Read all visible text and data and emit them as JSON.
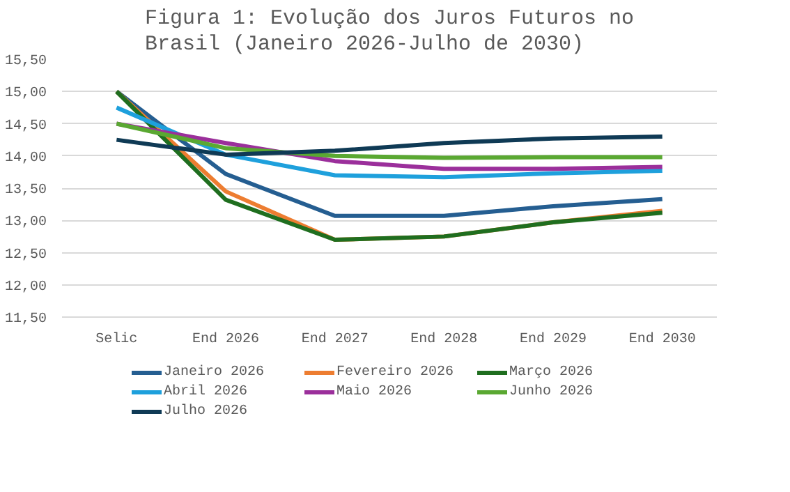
{
  "chart_data": {
    "type": "line",
    "title": "Figura 1: Evolução dos Juros Futuros no Brasil (Janeiro 2026-Julho de 2030)",
    "categories": [
      "Selic",
      "End 2026",
      "End 2027",
      "End 2028",
      "End 2029",
      "End 2030"
    ],
    "series": [
      {
        "name": "Janeiro 2026",
        "color": "#255e91",
        "values": [
          15.0,
          13.72,
          13.07,
          13.07,
          13.22,
          13.33
        ]
      },
      {
        "name": "Fevereiro 2026",
        "color": "#ed7d31",
        "values": [
          15.0,
          13.45,
          12.7,
          12.75,
          12.97,
          13.15
        ]
      },
      {
        "name": "Março 2026",
        "color": "#1f6e1f",
        "values": [
          15.0,
          13.32,
          12.7,
          12.75,
          12.97,
          13.12
        ]
      },
      {
        "name": "Abril 2026",
        "color": "#1ea0dc",
        "values": [
          14.75,
          14.02,
          13.7,
          13.67,
          13.73,
          13.77
        ]
      },
      {
        "name": "Maio 2026",
        "color": "#9b2f9b",
        "values": [
          14.5,
          14.2,
          13.92,
          13.8,
          13.8,
          13.83
        ]
      },
      {
        "name": "Junho 2026",
        "color": "#5aa832",
        "values": [
          14.5,
          14.12,
          14.0,
          13.97,
          13.98,
          13.98
        ]
      },
      {
        "name": "Julho 2026",
        "color": "#0f3a55",
        "values": [
          14.25,
          14.02,
          14.08,
          14.2,
          14.27,
          14.3
        ]
      }
    ],
    "ylim": [
      11.5,
      15.5
    ],
    "yticks": [
      {
        "value": 11.5,
        "label": "11,50"
      },
      {
        "value": 12,
        "label": "12,00"
      },
      {
        "value": 12.5,
        "label": "12,50"
      },
      {
        "value": 13,
        "label": "13,00"
      },
      {
        "value": 13.5,
        "label": "13,50"
      },
      {
        "value": 14,
        "label": "14,00"
      },
      {
        "value": 14.5,
        "label": "14,50"
      },
      {
        "value": 15,
        "label": "15,00"
      },
      {
        "value": 15.5,
        "label": "15,50"
      }
    ],
    "grid": "y",
    "legend": "bottom",
    "marker": "none",
    "line_style": "solid"
  }
}
